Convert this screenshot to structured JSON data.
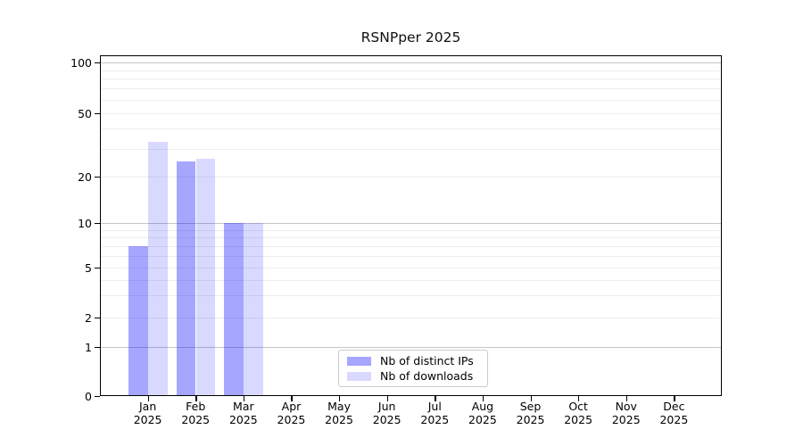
{
  "chart_data": {
    "type": "bar",
    "title": "RSNPper 2025",
    "scale": "symlog",
    "categories": [
      "Jan",
      "Feb",
      "Mar",
      "Apr",
      "May",
      "Jun",
      "Jul",
      "Aug",
      "Sep",
      "Oct",
      "Nov",
      "Dec"
    ],
    "category_sublabel": "2025",
    "series": [
      {
        "name": "Nb of distinct IPs",
        "values": [
          7,
          25,
          10,
          0,
          0,
          0,
          0,
          0,
          0,
          0,
          0,
          0
        ],
        "color": "#0000ff",
        "alpha": 0.35,
        "rendered_color": "#a6a6f8"
      },
      {
        "name": "Nb of downloads",
        "values": [
          33,
          26,
          10,
          0,
          0,
          0,
          0,
          0,
          0,
          0,
          0,
          0
        ],
        "color": "#0000ff",
        "alpha": 0.15,
        "rendered_color": "#dadaf9"
      }
    ],
    "yticks": [
      0,
      1,
      2,
      5,
      10,
      20,
      50,
      100
    ],
    "ylim": [
      0,
      112
    ],
    "xlabel": "",
    "ylabel": "",
    "grid": {
      "on": true,
      "major": [
        1,
        10,
        100
      ],
      "minor": [
        2,
        3,
        4,
        5,
        6,
        7,
        8,
        9,
        20,
        30,
        40,
        50,
        60,
        70,
        80,
        90
      ],
      "major_color": "#c6c6c6",
      "minor_color": "#ededed"
    },
    "legend": {
      "position": "lower center inside"
    }
  },
  "colors": {
    "background": "#ffffff",
    "spine": "#000000",
    "text": "#000000"
  }
}
